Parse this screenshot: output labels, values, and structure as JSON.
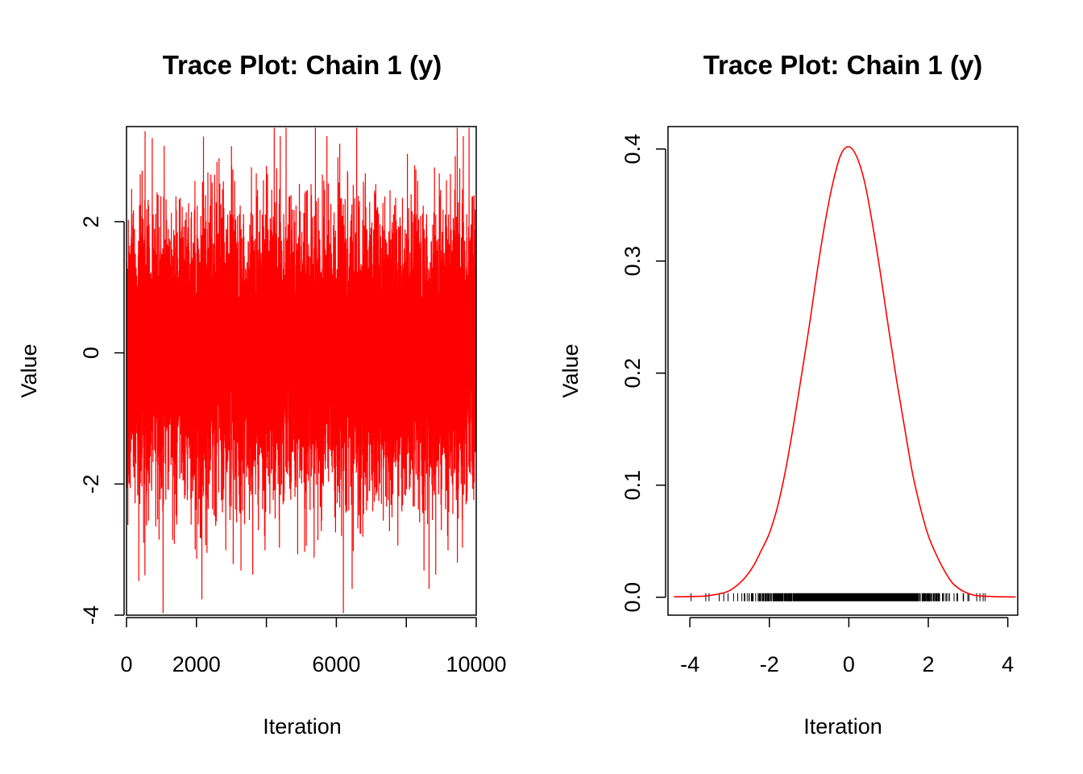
{
  "colors": {
    "series": "#ff0000",
    "rug": "#000000",
    "axis": "#000000",
    "background": "#ffffff"
  },
  "chart_data": [
    {
      "type": "line",
      "title": "Trace Plot: Chain 1 (y)",
      "xlabel": "Iteration",
      "ylabel": "Value",
      "xlim": [
        0,
        10000
      ],
      "ylim": [
        -4.0,
        3.45
      ],
      "xticks": [
        0,
        2000,
        4000,
        6000,
        8000,
        10000
      ],
      "xtick_labels": [
        "0",
        "2000",
        "",
        "6000",
        "",
        "10000"
      ],
      "yticks": [
        -4,
        -2,
        0,
        2
      ],
      "ytick_labels": [
        "-4",
        "-2",
        "0",
        "2"
      ],
      "grid": false,
      "series": [
        {
          "description_of_values": "MCMC trace of y, 10000 iterations, approx. standard normal samples",
          "min": -3.97,
          "max": 3.43,
          "extreme_points": [
            {
              "x": 530,
              "y": 3.38
            },
            {
              "x": 2200,
              "y": 3.3
            },
            {
              "x": 3000,
              "y": 3.15
            },
            {
              "x": 5400,
              "y": 3.43
            },
            {
              "x": 6200,
              "y": -3.97
            },
            {
              "x": 6450,
              "y": -3.6
            },
            {
              "x": 8650,
              "y": -3.6
            },
            {
              "x": 9400,
              "y": 3.0
            },
            {
              "x": 3050,
              "y": -3.22
            },
            {
              "x": 9460,
              "y": -3.2
            },
            {
              "x": 2300,
              "y": -3.05
            },
            {
              "x": 4000,
              "y": 2.85
            }
          ]
        }
      ]
    },
    {
      "type": "line",
      "title": "Trace Plot: Chain 1 (y)",
      "xlabel": "Iteration",
      "ylabel": "Value",
      "xlim": [
        -4.55,
        4.25
      ],
      "ylim": [
        -0.016,
        0.42
      ],
      "xticks": [
        -4,
        -2,
        0,
        2,
        4
      ],
      "xtick_labels": [
        "-4",
        "-2",
        "0",
        "2",
        "4"
      ],
      "yticks": [
        0.0,
        0.1,
        0.2,
        0.3,
        0.4
      ],
      "ytick_labels": [
        "0.0",
        "0.1",
        "0.2",
        "0.3",
        "0.4"
      ],
      "grid": false,
      "rug": {
        "min": -3.97,
        "max": 3.43
      },
      "series": [
        {
          "x": [
            -4.4,
            -4.0,
            -3.6,
            -3.2,
            -3.0,
            -2.8,
            -2.6,
            -2.4,
            -2.2,
            -2.0,
            -1.8,
            -1.6,
            -1.4,
            -1.2,
            -1.0,
            -0.8,
            -0.6,
            -0.4,
            -0.2,
            0.0,
            0.2,
            0.4,
            0.6,
            0.8,
            1.0,
            1.2,
            1.4,
            1.6,
            1.8,
            2.0,
            2.2,
            2.4,
            2.6,
            2.8,
            3.0,
            3.2,
            3.6,
            4.0,
            4.2
          ],
          "y": [
            0.0004,
            0.0006,
            0.0011,
            0.0035,
            0.006,
            0.011,
            0.018,
            0.028,
            0.042,
            0.057,
            0.08,
            0.112,
            0.152,
            0.196,
            0.241,
            0.29,
            0.334,
            0.37,
            0.395,
            0.402,
            0.393,
            0.37,
            0.332,
            0.288,
            0.24,
            0.194,
            0.152,
            0.111,
            0.08,
            0.055,
            0.038,
            0.024,
            0.013,
            0.007,
            0.0035,
            0.0015,
            0.0006,
            0.0003,
            0.0002
          ]
        }
      ]
    }
  ]
}
